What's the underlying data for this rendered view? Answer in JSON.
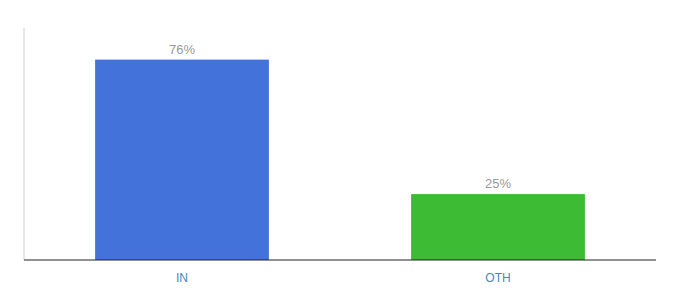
{
  "chart_data": {
    "type": "bar",
    "categories": [
      "IN",
      "OTH"
    ],
    "values": [
      76,
      25
    ],
    "value_labels": [
      "76%",
      "25%"
    ],
    "colors": [
      "#4472db",
      "#3dbb35"
    ],
    "ylim": [
      0,
      88
    ],
    "data_labels": true,
    "tick_labels": "x",
    "grid": false
  }
}
